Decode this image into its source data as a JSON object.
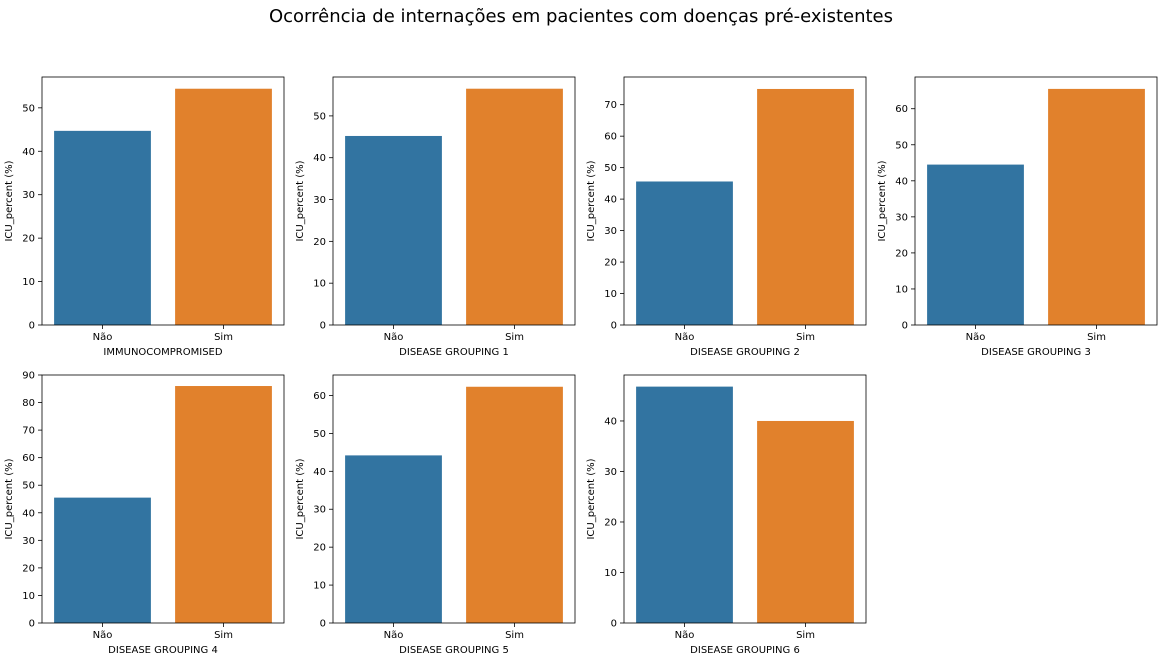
{
  "suptitle": "Ocorrência de internações em pacientes com doenças pré-existentes",
  "colors": {
    "nao": "#3274a1",
    "sim": "#e1812c"
  },
  "chart_data": [
    {
      "type": "bar",
      "categories": [
        "Não",
        "Sim"
      ],
      "values": [
        44.7,
        54.4
      ],
      "xlabel": "IMMUNOCOMPROMISED",
      "ylabel": "ICU_percent (%)",
      "ylim": [
        0,
        57.1
      ],
      "yticks": [
        0,
        10,
        20,
        30,
        40,
        50
      ],
      "grid": false
    },
    {
      "type": "bar",
      "categories": [
        "Não",
        "Sim"
      ],
      "values": [
        45.2,
        56.5
      ],
      "xlabel": "DISEASE GROUPING 1",
      "ylabel": "ICU_percent (%)",
      "ylim": [
        0,
        59.3
      ],
      "yticks": [
        0,
        10,
        20,
        30,
        40,
        50
      ],
      "grid": false
    },
    {
      "type": "bar",
      "categories": [
        "Não",
        "Sim"
      ],
      "values": [
        45.6,
        75.0
      ],
      "xlabel": "DISEASE GROUPING 2",
      "ylabel": "ICU_percent (%)",
      "ylim": [
        0,
        78.8
      ],
      "yticks": [
        0,
        10,
        20,
        30,
        40,
        50,
        60,
        70
      ],
      "grid": false
    },
    {
      "type": "bar",
      "categories": [
        "Não",
        "Sim"
      ],
      "values": [
        44.5,
        65.5
      ],
      "xlabel": "DISEASE GROUPING 3",
      "ylabel": "ICU_percent (%)",
      "ylim": [
        0,
        68.8
      ],
      "yticks": [
        0,
        10,
        20,
        30,
        40,
        50,
        60
      ],
      "grid": false
    },
    {
      "type": "bar",
      "categories": [
        "Não",
        "Sim"
      ],
      "values": [
        45.5,
        86.0
      ],
      "xlabel": "DISEASE GROUPING 4",
      "ylabel": "ICU_percent (%)",
      "ylim": [
        0,
        90
      ],
      "yticks": [
        0,
        10,
        20,
        30,
        40,
        50,
        60,
        70,
        80,
        90
      ],
      "grid": false
    },
    {
      "type": "bar",
      "categories": [
        "Não",
        "Sim"
      ],
      "values": [
        44.2,
        62.3
      ],
      "xlabel": "DISEASE GROUPING 5",
      "ylabel": "ICU_percent (%)",
      "ylim": [
        0,
        65.4
      ],
      "yticks": [
        0,
        10,
        20,
        30,
        40,
        50,
        60
      ],
      "grid": false
    },
    {
      "type": "bar",
      "categories": [
        "Não",
        "Sim"
      ],
      "values": [
        46.8,
        40.0
      ],
      "xlabel": "DISEASE GROUPING 6",
      "ylabel": "ICU_percent (%)",
      "ylim": [
        0,
        49.1
      ],
      "yticks": [
        0,
        10,
        20,
        30,
        40
      ],
      "grid": false
    }
  ]
}
